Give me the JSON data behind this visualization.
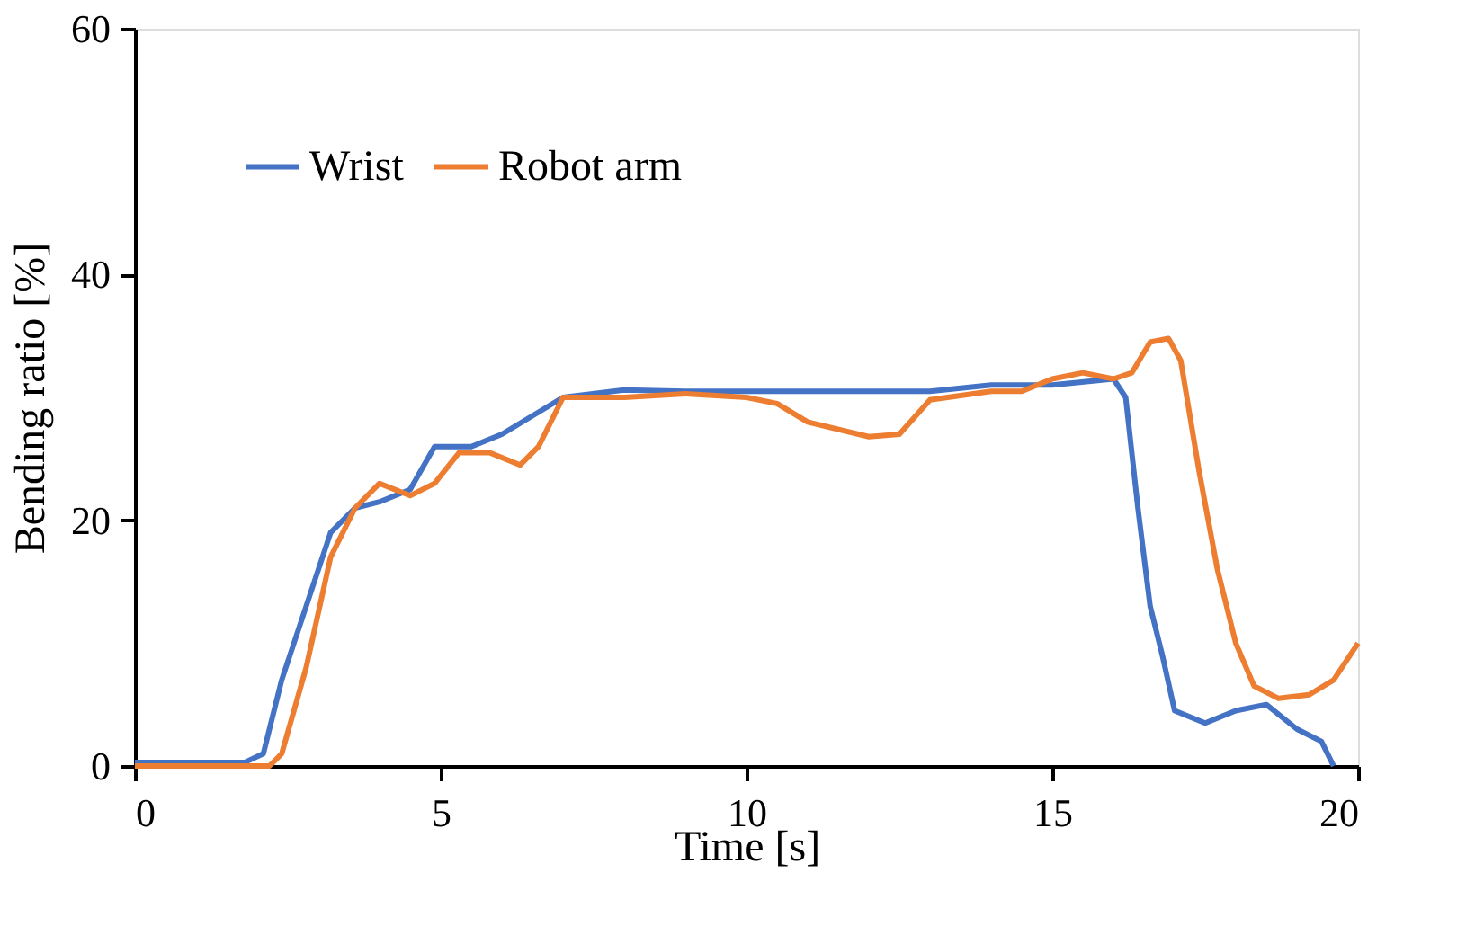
{
  "chart_data": {
    "type": "line",
    "xlabel": "Time [s]",
    "ylabel": "Bending ratio [%]",
    "xlim": [
      0,
      20
    ],
    "xticks": [
      0,
      5,
      10,
      15,
      20
    ],
    "ylim": [
      0,
      60
    ],
    "yticks": [
      0,
      20,
      40,
      60
    ],
    "grid": false,
    "legend": "top left",
    "line_style": "solid",
    "marker": "none",
    "series": [
      {
        "name": "Wrist",
        "color": "#4472c4",
        "x": [
          0,
          1.8,
          2.1,
          2.4,
          2.8,
          3.2,
          3.6,
          4,
          4.5,
          4.9,
          5.5,
          6,
          6.5,
          7,
          8,
          9,
          10,
          11,
          12,
          13,
          14,
          15,
          16,
          16.2,
          16.4,
          16.6,
          16.8,
          17,
          17.5,
          18,
          18.5,
          19,
          19.4,
          19.6
        ],
        "values": [
          0.3,
          0.3,
          1,
          7,
          13,
          19,
          21,
          21.5,
          22.5,
          26,
          26,
          27,
          28.5,
          30,
          30.6,
          30.5,
          30.5,
          30.5,
          30.5,
          30.5,
          31,
          31,
          31.5,
          30,
          21,
          13,
          9,
          4.5,
          3.5,
          4.5,
          5,
          3,
          2,
          0
        ]
      },
      {
        "name": "Robot arm",
        "color": "#ed7d31",
        "x": [
          0,
          2.2,
          2.4,
          2.8,
          3.2,
          3.6,
          4,
          4.5,
          4.9,
          5.3,
          5.8,
          6.3,
          6.6,
          7,
          8,
          9,
          10,
          10.5,
          11,
          12,
          12.5,
          13,
          14,
          14.5,
          15,
          15.5,
          16,
          16.3,
          16.6,
          16.9,
          17.1,
          17.4,
          17.7,
          18,
          18.3,
          18.7,
          19.2,
          19.6,
          20
        ],
        "values": [
          0,
          0,
          1,
          8,
          17,
          21,
          23,
          22,
          23,
          25.5,
          25.5,
          24.5,
          26,
          30,
          30,
          30.3,
          30,
          29.5,
          28,
          26.8,
          27,
          29.8,
          30.5,
          30.5,
          31.5,
          32,
          31.5,
          32,
          34.5,
          34.8,
          33,
          24,
          16,
          10,
          6.5,
          5.5,
          5.8,
          7,
          10
        ]
      }
    ]
  }
}
